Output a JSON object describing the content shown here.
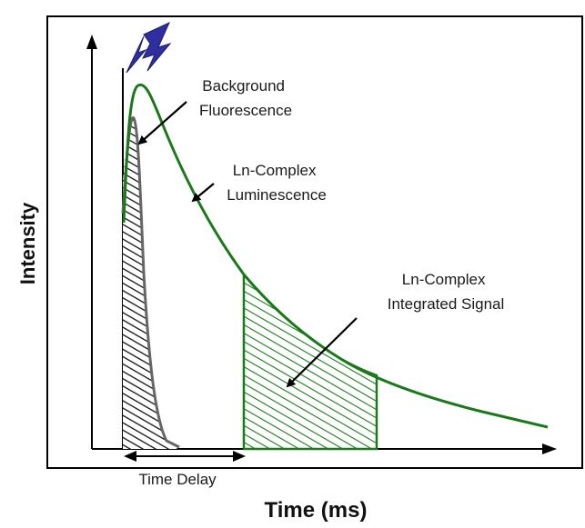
{
  "labels": {
    "background_fluorescence": [
      "Background",
      "Fluorescence"
    ],
    "ln_complex_luminescence": [
      "Ln-Complex",
      "Luminescence"
    ],
    "ln_complex_integrated_signal": [
      "Ln-Complex",
      "Integrated Signal"
    ],
    "time_delay": "Time Delay"
  },
  "axes": {
    "ylabel": "Intensity",
    "xlabel": "Time (ms)"
  },
  "colors": {
    "luminescence_curve": "#1a7a1a",
    "integrated_hatch": "#1a7a1a",
    "fluorescence_curve": "#666666",
    "fluorescence_hatch": "#111111",
    "flash_icon": "#2e2e9e",
    "frame": "#000000"
  },
  "icons": {
    "excitation": "lightning-bolt-icon"
  }
}
